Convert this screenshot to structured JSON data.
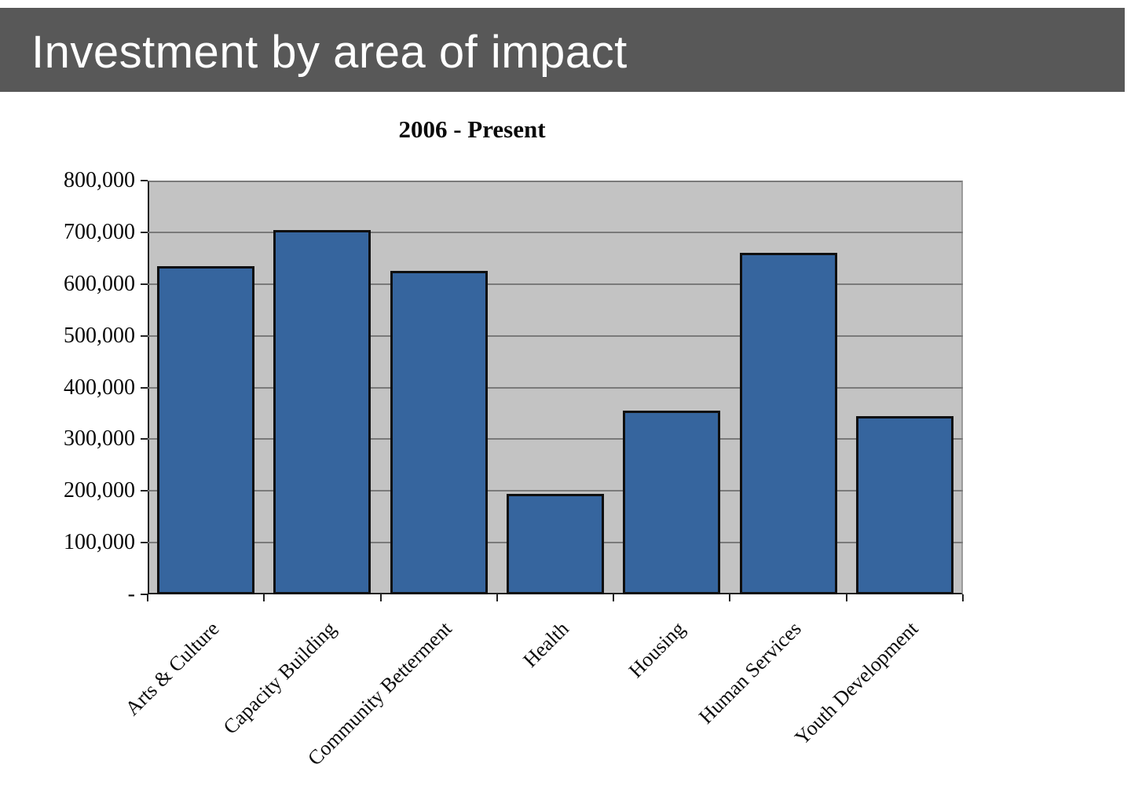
{
  "header": {
    "title": "Investment by area of impact",
    "bg_color": "#585858",
    "text_color": "#FFFFFF"
  },
  "chart_data": {
    "type": "bar",
    "title": "2006 - Present",
    "categories": [
      "Arts & Culture",
      "Capacity Building",
      "Community Betterment",
      "Health",
      "Housing",
      "Human Services",
      "Youth Development"
    ],
    "values": [
      635000,
      705000,
      625000,
      195000,
      355000,
      660000,
      345000
    ],
    "y_tick_labels": [
      "800,000",
      "700,000",
      "600,000",
      "500,000",
      "400,000",
      "300,000",
      "200,000",
      "100,000",
      "-"
    ],
    "ylim": [
      0,
      800000
    ],
    "y_tick_step": 100000,
    "grid": true,
    "legend_position": "none",
    "bar_color": "#36659E",
    "bar_border_color": "#0F0F0F",
    "plot_bg_color": "#C3C3C3",
    "gridline_color": "#7A7A7A",
    "axis_color": "#222222",
    "xlabel": "",
    "ylabel": ""
  }
}
